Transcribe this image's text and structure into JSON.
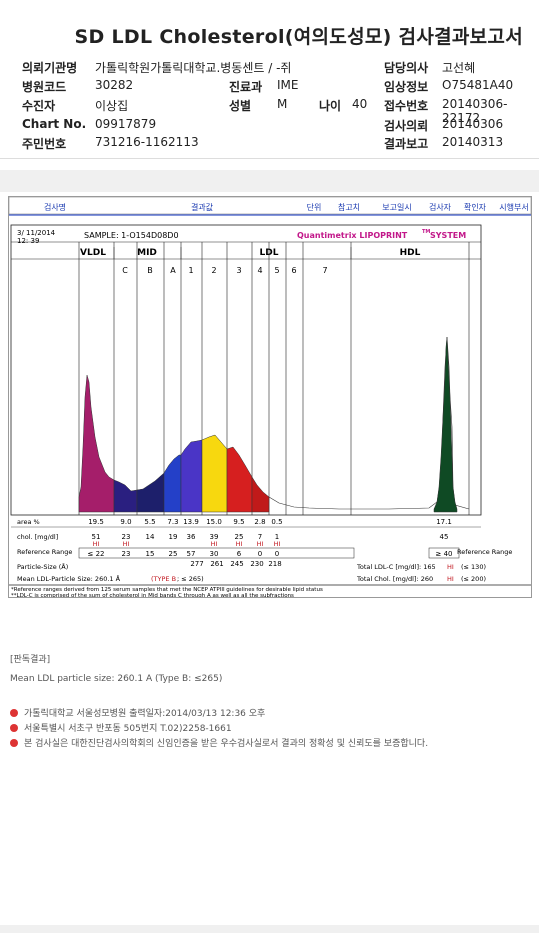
{
  "title": "SD LDL Cholesterol(여의도성모) 검사결과보고서",
  "left_info": [
    {
      "k": "의뢰기관명",
      "v": "가톨릭학원가톨릭대학교.병동센트 / -쥐"
    },
    {
      "k": "병원코드",
      "v": "30282"
    },
    {
      "k": "수진자",
      "v": "이상집"
    },
    {
      "k": "Chart No.",
      "v": "09917879"
    },
    {
      "k": "주민번호",
      "v": "731216-1162113"
    }
  ],
  "mid_info": [
    {
      "k": "진료과",
      "v": "IME"
    },
    {
      "k": "성별",
      "v": "M"
    },
    {
      "k": "나이",
      "v": "40"
    }
  ],
  "right_info": [
    {
      "k": "담당의사",
      "v": "고선혜"
    },
    {
      "k": "임상정보",
      "v": "O75481A40"
    },
    {
      "k": "접수번호",
      "v": "20140306-22172"
    },
    {
      "k": "검사의뢰",
      "v": "20140306"
    },
    {
      "k": "결과보고",
      "v": "20140313"
    }
  ],
  "table_header": [
    "검사명",
    "결과값",
    "단위",
    "참고치",
    "보고일시",
    "검사자",
    "확인자",
    "시행부서"
  ],
  "report": {
    "date": "3/ 11/2014",
    "time": "12: 39",
    "sample": "SAMPLE:   1-O154D08D0",
    "brand": "Quantimetrix LIPOPRINT",
    "brand_tm": "TM",
    "brand_suffix": " SYSTEM",
    "bands": {
      "vldl": "VLDL",
      "mid": "MID",
      "ldl": "LDL",
      "hdl": "HDL"
    },
    "sub_bands": [
      "C",
      "B",
      "A",
      "1",
      "2",
      "3",
      "4",
      "5",
      "6",
      "7"
    ],
    "area_label": "area %",
    "area_values": [
      "19.5",
      "9.0",
      "5.5",
      "7.3",
      "13.9",
      "15.0",
      "9.5",
      "2.8",
      "0.5",
      "17.1"
    ],
    "chol_label": "chol. [mg/dl]",
    "chol_values": [
      "51",
      "23",
      "14",
      "19",
      "36",
      "39",
      "25",
      "7",
      "1",
      "45"
    ],
    "chol_flags": [
      "HI",
      "HI",
      "",
      "",
      "",
      "HI",
      "HI",
      "HI",
      "HI",
      ""
    ],
    "ref_label": "Reference Range",
    "ref_values": [
      "≤ 22",
      "23",
      "15",
      "25",
      "57",
      "30",
      "6",
      "0",
      "0",
      "≥ 40"
    ],
    "ref_label_right": "Reference Range",
    "particle_label": "Particle-Size (Å)",
    "particle_values": [
      "277",
      "261",
      "245",
      "230",
      "218"
    ],
    "mean_size": "Mean LDL-Particle Size:  260.1 Å",
    "mean_type": "(TYPE B",
    "mean_type_ref": "; ≤ 265)",
    "total_ldl": "Total LDL-C [mg/dl]:  165",
    "total_ldl_flag": "HI",
    "total_ldl_ref": "(≤ 130)",
    "total_chol": "Total Chol. [mg/dl]:  260",
    "total_chol_flag": "HI",
    "total_chol_ref": "(≤ 200)",
    "footnote1": "*Reference ranges derived from 125 serum samples that met the NCEP ATPIII guidelines for desirable lipid status",
    "footnote2": "**LDL-C is comprised of the sum of cholesterol in Mid bands C through A as well as all the subfractions"
  },
  "remarks_title": "[판독결과]",
  "remarks_text": "Mean LDL particle size: 260.1 A (Type B: ≤265)",
  "bullets": [
    "가톨릭대학교 서울성모병원        출력일자:2014/03/13 12:36 오후",
    "서울특별시 서초구 반포동 505번지 T.02)2258-1661",
    "본 검사실은 대한진단검사의학회의 신임인증을 받은 우수검사실로서 결과의 정확성 및 신뢰도를 보증합니다."
  ]
}
